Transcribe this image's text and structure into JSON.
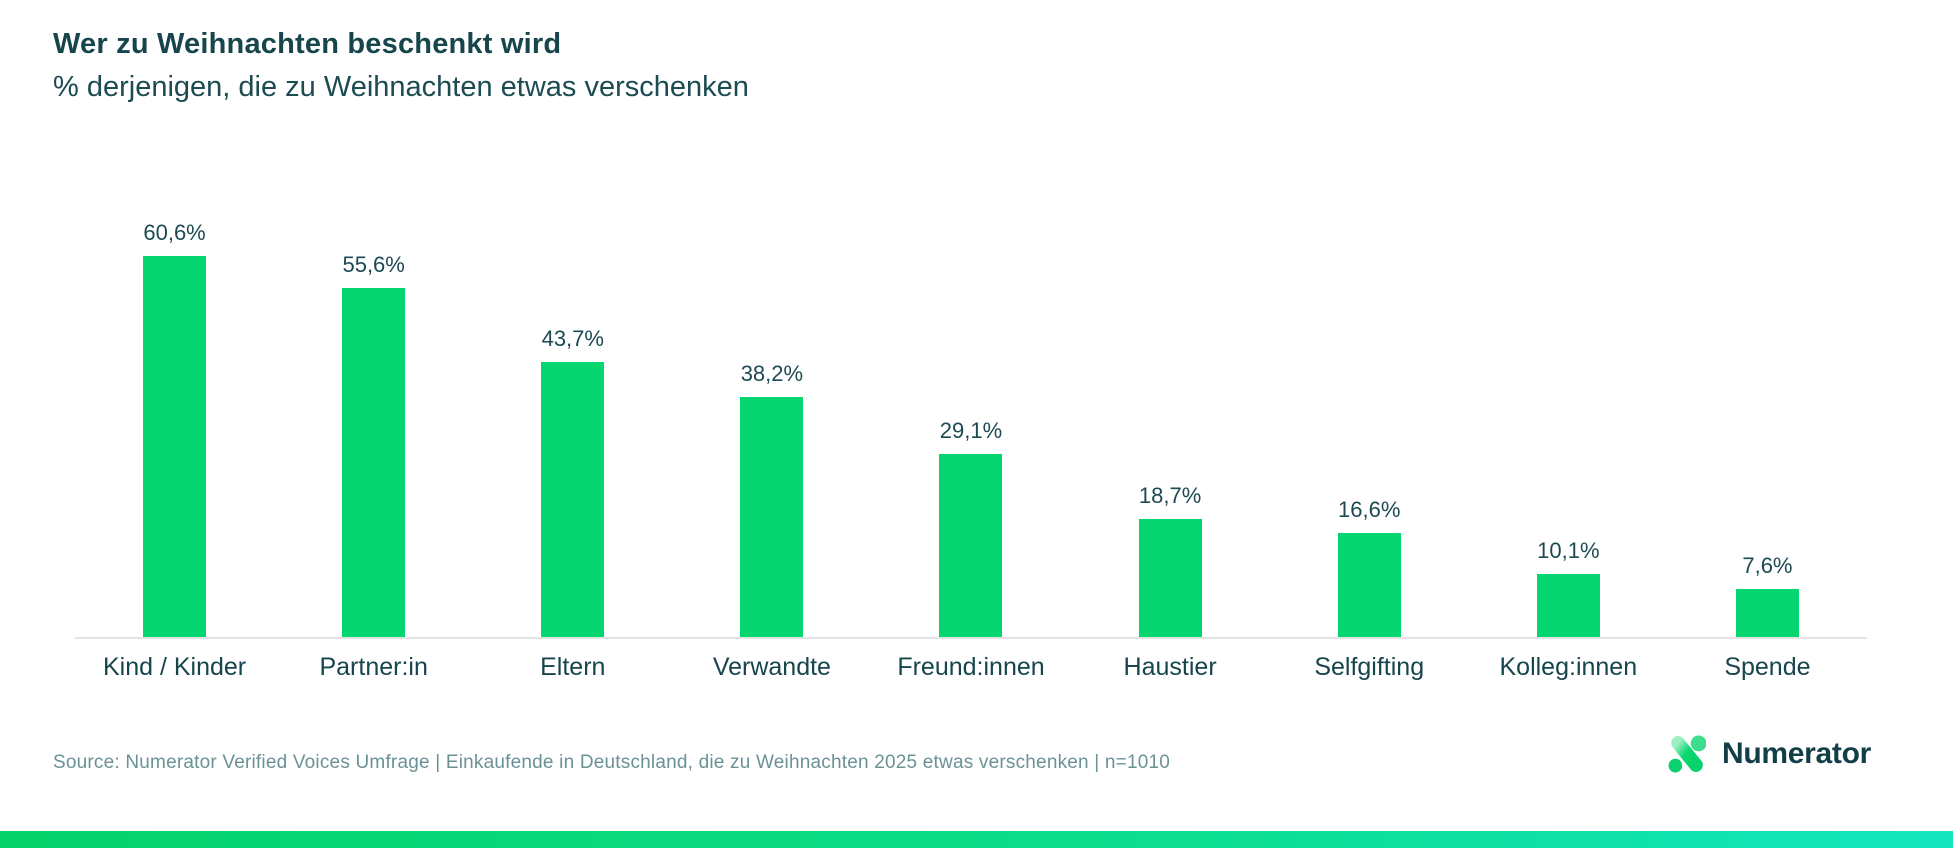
{
  "header": {
    "title": "Wer zu Weihnachten beschenkt wird",
    "subtitle": "% derjenigen, die zu Weihnachten etwas verschenken"
  },
  "chart_data": {
    "type": "bar",
    "title": "Wer zu Weihnachten beschenkt wird",
    "subtitle": "% derjenigen, die zu Weihnachten etwas verschenken",
    "categories": [
      "Kind / Kinder",
      "Partner:in",
      "Eltern",
      "Verwandte",
      "Freund:innen",
      "Haustier",
      "Selfgifting",
      "Kolleg:innen",
      "Spende"
    ],
    "values": [
      60.6,
      55.6,
      43.7,
      38.2,
      29.1,
      18.7,
      16.6,
      10.1,
      7.6
    ],
    "value_labels": [
      "60,6%",
      "55,6%",
      "43,7%",
      "38,2%",
      "29,1%",
      "18,7%",
      "16,6%",
      "10,1%",
      "7,6%"
    ],
    "xlabel": "",
    "ylabel": "",
    "ylim": [
      0,
      73.5
    ],
    "grid": false,
    "legend": "none",
    "data_labels_position": "above-bars",
    "bar_color": "#06D66F"
  },
  "footer": {
    "source": "Source: Numerator Verified Voices Umfrage | Einkaufende in Deutschland, die zu Weihnachten 2025 etwas verschenken | n=1010",
    "logo_text": "Numerator"
  },
  "colors": {
    "title_text": "#17454C",
    "value_label_text": "#1D4A52",
    "bar": "#06D66F",
    "axis_line": "#E3E3E3",
    "source_text": "#6A9295",
    "logo_text": "#123F47",
    "logo_green": "#0BD871",
    "logo_mint": "#3EDD8D",
    "strip_gradient_left": "#06D26B",
    "strip_gradient_right": "#13E6BE"
  }
}
